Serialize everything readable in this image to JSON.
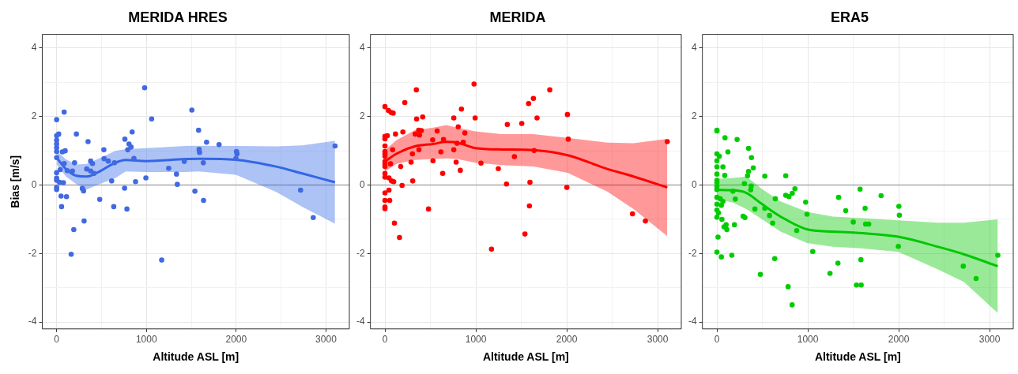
{
  "chart_data": [
    {
      "type": "scatter",
      "title": "MERIDA HRES",
      "xlabel": "Altitude ASL [m]",
      "ylabel": "Bias [m/s]",
      "xlim": [
        -160,
        3260
      ],
      "xticks": [
        0,
        {
          "value": 500,
          "label": null
        },
        1000,
        {
          "value": 1500,
          "label": null
        },
        2000,
        {
          "value": 2500,
          "label": null
        },
        3000
      ],
      "ylim": [
        -4.2,
        4.4
      ],
      "yticks": [
        -4,
        {
          "value": -3,
          "label": null
        },
        -2,
        {
          "value": -1,
          "label": null
        },
        0,
        {
          "value": 1,
          "label": null
        },
        2,
        {
          "value": 3,
          "label": null
        },
        4
      ],
      "grid": true,
      "legend": false,
      "ref_lines": [
        {
          "axis": "y",
          "value": 0,
          "color": "#aaaaaa"
        }
      ],
      "series": [
        {
          "marker": "circle",
          "color": "#4169e1",
          "x": [
            0,
            84,
            23,
            0,
            0,
            0,
            0,
            0,
            220,
            350,
            95,
            64,
            0,
            84,
            200,
            40,
            118,
            176,
            0,
            0,
            0,
            32,
            75,
            0,
            0,
            49,
            110,
            55,
            286,
            300,
            306,
            191,
            162,
            335,
            379,
            399,
            379,
            416,
            526,
            529,
            575,
            644,
            613,
            480,
            636,
            760,
            806,
            829,
            792,
            841,
            861,
            879,
            757,
            783,
            980,
            1058,
            994,
            1170,
            1248,
            1335,
            1344,
            1422,
            1506,
            1581,
            1587,
            1592,
            1633,
            1540,
            1636,
            1670,
            1809,
            2003,
            2009,
            1997,
            2717,
            2858,
            3101
          ],
          "values": [
            1.91,
            2.13,
            1.49,
            1.44,
            1.31,
            1.2,
            1.09,
            0.98,
            1.49,
            1.27,
            1.0,
            0.97,
            0.8,
            0.63,
            0.65,
            0.45,
            0.42,
            0.41,
            0.36,
            0.2,
            0.14,
            0.08,
            0.07,
            -0.07,
            -0.13,
            -0.32,
            -0.34,
            -0.63,
            -0.1,
            -0.17,
            -1.05,
            -1.3,
            -2.02,
            0.47,
            0.7,
            0.63,
            0.41,
            0.34,
            1.03,
            0.77,
            0.7,
            0.65,
            0.12,
            -0.42,
            -0.63,
            1.34,
            1.2,
            1.11,
            1.03,
            1.55,
            0.78,
            0.1,
            -0.09,
            -0.7,
            2.84,
            1.93,
            0.21,
            -2.19,
            0.49,
            0.32,
            0.02,
            0.69,
            2.19,
            1.6,
            1.04,
            0.95,
            0.65,
            -0.18,
            -0.45,
            1.25,
            1.18,
            0.98,
            0.91,
            0.78,
            -0.15,
            -0.95,
            1.14
          ]
        },
        {
          "type": "line",
          "marker": "none",
          "color": "#3366e6",
          "x": [
            0,
            104,
            220,
            335,
            450,
            653,
            769,
            1000,
            1433,
            1578,
            1997,
            2445,
            2734,
            3100
          ],
          "values": [
            0.8,
            0.47,
            0.27,
            0.25,
            0.36,
            0.65,
            0.73,
            0.7,
            0.76,
            0.77,
            0.74,
            0.54,
            0.34,
            0.08
          ],
          "lower": [
            0.6,
            0.25,
            0.03,
            -0.13,
            0.0,
            0.2,
            0.4,
            0.38,
            0.38,
            0.4,
            0.3,
            -0.2,
            -0.63,
            -1.13
          ],
          "upper": [
            1.0,
            0.75,
            0.6,
            0.62,
            0.75,
            1.0,
            1.05,
            1.08,
            1.14,
            1.15,
            1.14,
            1.13,
            1.16,
            1.29
          ]
        }
      ]
    },
    {
      "type": "scatter",
      "title": "MERIDA",
      "xlabel": "Altitude ASL [m]",
      "xlim": [
        -160,
        3260
      ],
      "xticks": [
        0,
        {
          "value": 500,
          "label": null
        },
        1000,
        {
          "value": 1500,
          "label": null
        },
        2000,
        {
          "value": 2500,
          "label": null
        },
        3000
      ],
      "ylim": [
        -4.2,
        4.4
      ],
      "yticks": [
        -4,
        {
          "value": -3,
          "label": null
        },
        -2,
        {
          "value": -1,
          "label": null
        },
        0,
        {
          "value": 1,
          "label": null
        },
        2,
        {
          "value": 3,
          "label": null
        },
        4
      ],
      "grid": true,
      "legend": false,
      "ref_lines": [
        {
          "axis": "y",
          "value": 0,
          "color": "#aaaaaa"
        }
      ],
      "series": [
        {
          "marker": "circle",
          "color": "#ff0000",
          "x": [
            0,
            38,
            67,
            90,
            345,
            218,
            0,
            0,
            26,
            0,
            0,
            0,
            0,
            0,
            0,
            0,
            0,
            0,
            44,
            72,
            96,
            84,
            61,
            116,
            197,
            174,
            188,
            0,
            44,
            0,
            52,
            0,
            0,
            104,
            160,
            348,
            415,
            333,
            371,
            400,
            380,
            302,
            287,
            374,
            305,
            479,
            525,
            528,
            574,
            615,
            644,
            635,
            757,
            841,
            806,
            879,
            757,
            792,
            861,
            783,
            829,
            980,
            992,
            1056,
            1172,
            1247,
            1337,
            1346,
            1424,
            1505,
            1540,
            1580,
            1633,
            1595,
            1589,
            1641,
            1673,
            1813,
            2007,
            2016,
            2001,
            2723,
            2865,
            3106
          ],
          "values": [
            2.29,
            2.18,
            2.12,
            2.1,
            2.78,
            2.41,
            1.42,
            1.35,
            1.44,
            1.14,
            0.98,
            0.91,
            0.84,
            0.69,
            0.62,
            0.54,
            0.34,
            0.23,
            0.21,
            0.12,
            0.1,
            1.03,
            0.62,
            1.49,
            1.55,
            0.54,
            -0.01,
            -0.23,
            -0.15,
            -0.45,
            -0.45,
            -0.64,
            -0.69,
            -1.11,
            -1.53,
            1.93,
            1.99,
            1.49,
            1.6,
            1.59,
            1.46,
            0.91,
            0.67,
            1.03,
            0.12,
            -0.7,
            1.32,
            0.71,
            1.58,
            0.97,
            1.33,
            0.34,
            1.96,
            2.22,
            1.7,
            1.52,
            1.03,
            1.22,
            1.25,
            0.67,
            0.43,
            2.95,
            1.96,
            0.64,
            -1.87,
            0.48,
            0.03,
            1.77,
            0.83,
            1.8,
            -1.43,
            2.38,
            2.53,
            0.08,
            -0.61,
            1.01,
            1.96,
            2.78,
            2.06,
            1.34,
            -0.07,
            -0.84,
            -1.05,
            1.27
          ]
        },
        {
          "type": "line",
          "marker": "none",
          "color": "#ff0000",
          "x": [
            0,
            125,
            328,
            531,
            676,
            792,
            995,
            1285,
            1633,
            2010,
            2445,
            2735,
            3106
          ],
          "values": [
            0.69,
            0.91,
            1.13,
            1.2,
            1.26,
            1.24,
            1.08,
            1.04,
            1.02,
            0.87,
            0.47,
            0.25,
            -0.07
          ],
          "lower": [
            0.4,
            0.62,
            0.73,
            0.76,
            0.78,
            0.76,
            0.65,
            0.58,
            0.54,
            0.36,
            -0.19,
            -0.7,
            -1.49
          ],
          "upper": [
            1.02,
            1.31,
            1.6,
            1.68,
            1.75,
            1.68,
            1.57,
            1.49,
            1.49,
            1.38,
            1.24,
            1.22,
            1.35
          ]
        }
      ]
    },
    {
      "type": "scatter",
      "title": "ERA5",
      "xlabel": "Altitude ASL [m]",
      "xlim": [
        -160,
        3260
      ],
      "xticks": [
        0,
        {
          "value": 500,
          "label": null
        },
        1000,
        {
          "value": 1500,
          "label": null
        },
        2000,
        {
          "value": 2500,
          "label": null
        },
        3000
      ],
      "ylim": [
        -4.2,
        4.4
      ],
      "yticks": [
        -4,
        {
          "value": -3,
          "label": null
        },
        -2,
        {
          "value": -1,
          "label": null
        },
        0,
        {
          "value": 1,
          "label": null
        },
        2,
        {
          "value": 3,
          "label": null
        },
        4
      ],
      "grid": true,
      "legend": false,
      "ref_lines": [
        {
          "axis": "y",
          "value": 0,
          "color": "#aaaaaa"
        }
      ],
      "series": [
        {
          "marker": "circle",
          "color": "#00cd00",
          "x": [
            0,
            0,
            89,
            222,
            0,
            26,
            0,
            121,
            348,
            380,
            0,
            66,
            400,
            0,
            86,
            348,
            337,
            0,
            0,
            0,
            0,
            302,
            377,
            372,
            176,
            202,
            0,
            37,
            66,
            49,
            0,
            0,
            17,
            0,
            55,
            78,
            101,
            109,
            193,
            288,
            308,
            418,
            12,
            0,
            49,
            164,
            527,
            527,
            579,
            613,
            642,
            636,
            478,
            757,
            757,
            792,
            829,
            858,
            878,
            783,
            827,
            976,
            991,
            1054,
            1244,
            1331,
            1339,
            1417,
            1500,
            1535,
            1587,
            1575,
            1630,
            1636,
            1670,
            1584,
            1806,
            2002,
            2007,
            1996,
            2710,
            2851,
            3090
          ],
          "values": [
            1.6,
            1.58,
            1.38,
            1.33,
            0.91,
            0.84,
            0.71,
            0.97,
            1.07,
            0.8,
            0.53,
            0.53,
            0.5,
            0.32,
            0.28,
            0.4,
            0.27,
            0.14,
            0.07,
            -0.04,
            -0.13,
            0.04,
            -0.03,
            -0.14,
            -0.18,
            -0.41,
            -0.36,
            -0.4,
            -0.48,
            -0.59,
            -0.56,
            -0.73,
            -0.81,
            -0.94,
            -1.0,
            -1.22,
            -1.16,
            -1.3,
            -1.16,
            -0.91,
            -0.95,
            -0.7,
            -1.52,
            -1.96,
            -2.1,
            -2.05,
            0.26,
            -0.68,
            -0.89,
            -1.11,
            -0.4,
            -2.15,
            -2.61,
            0.27,
            -0.3,
            -0.34,
            -0.24,
            -0.11,
            -1.33,
            -2.97,
            -3.5,
            -0.5,
            -0.85,
            -1.94,
            -2.58,
            -2.28,
            -0.36,
            -0.75,
            -1.08,
            -2.92,
            -2.92,
            -0.12,
            -0.68,
            -1.14,
            -1.14,
            -2.18,
            -0.31,
            -0.62,
            -0.88,
            -1.79,
            -2.37,
            -2.73,
            -2.05
          ]
        },
        {
          "type": "line",
          "marker": "none",
          "color": "#00c800",
          "x": [
            0,
            181,
            325,
            498,
            700,
            988,
            1276,
            1564,
            1996,
            2428,
            2716,
            3090
          ],
          "values": [
            -0.14,
            -0.15,
            -0.23,
            -0.56,
            -0.92,
            -1.29,
            -1.36,
            -1.4,
            -1.51,
            -1.8,
            -2.02,
            -2.37
          ],
          "lower": [
            -0.41,
            -0.52,
            -0.7,
            -1.0,
            -1.36,
            -1.69,
            -1.8,
            -1.84,
            -1.95,
            -2.46,
            -2.83,
            -3.74
          ],
          "upper": [
            0.18,
            0.21,
            0.25,
            -0.12,
            -0.48,
            -0.78,
            -0.92,
            -0.96,
            -1.03,
            -1.1,
            -1.1,
            -1.0
          ]
        }
      ]
    }
  ]
}
